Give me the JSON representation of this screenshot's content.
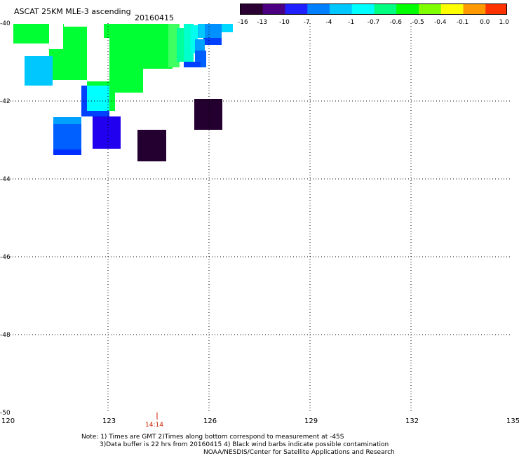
{
  "title": "ASCAT 25KM MLE-3 ascending",
  "date": "20160415",
  "colorbar": {
    "labels": [
      "-16",
      "-13",
      "-10",
      "-7",
      "-4",
      "-1",
      "-0.7",
      "-0.6",
      "-0.5",
      "-0.4",
      "-0.1",
      "0.0",
      "1.0"
    ],
    "colors": [
      "#2a0033",
      "#4b0082",
      "#2020ff",
      "#0080ff",
      "#00c8ff",
      "#00ffff",
      "#00ff80",
      "#00ff00",
      "#80ff00",
      "#ffff00",
      "#ff9900",
      "#ff3300"
    ]
  },
  "axes": {
    "lon_ticks": [
      "120",
      "123",
      "126",
      "129",
      "132",
      "135"
    ],
    "lat_ticks": [
      "-40",
      "-42",
      "-44",
      "-46",
      "-48",
      "-50"
    ],
    "lon_range": [
      120,
      135
    ],
    "lat_range": [
      -40,
      -50
    ]
  },
  "time_marker": "14:14",
  "notes": {
    "line1": "Note: 1) Times are GMT 2)Times along bottom correspond to measurement at -45S",
    "line2": "3)Data buffer is 22 hrs from 20160415 4) Black wind barbs indicate possible contamination",
    "line3": "NOAA/NESDIS/Center for Satellite Applications and Research"
  }
}
